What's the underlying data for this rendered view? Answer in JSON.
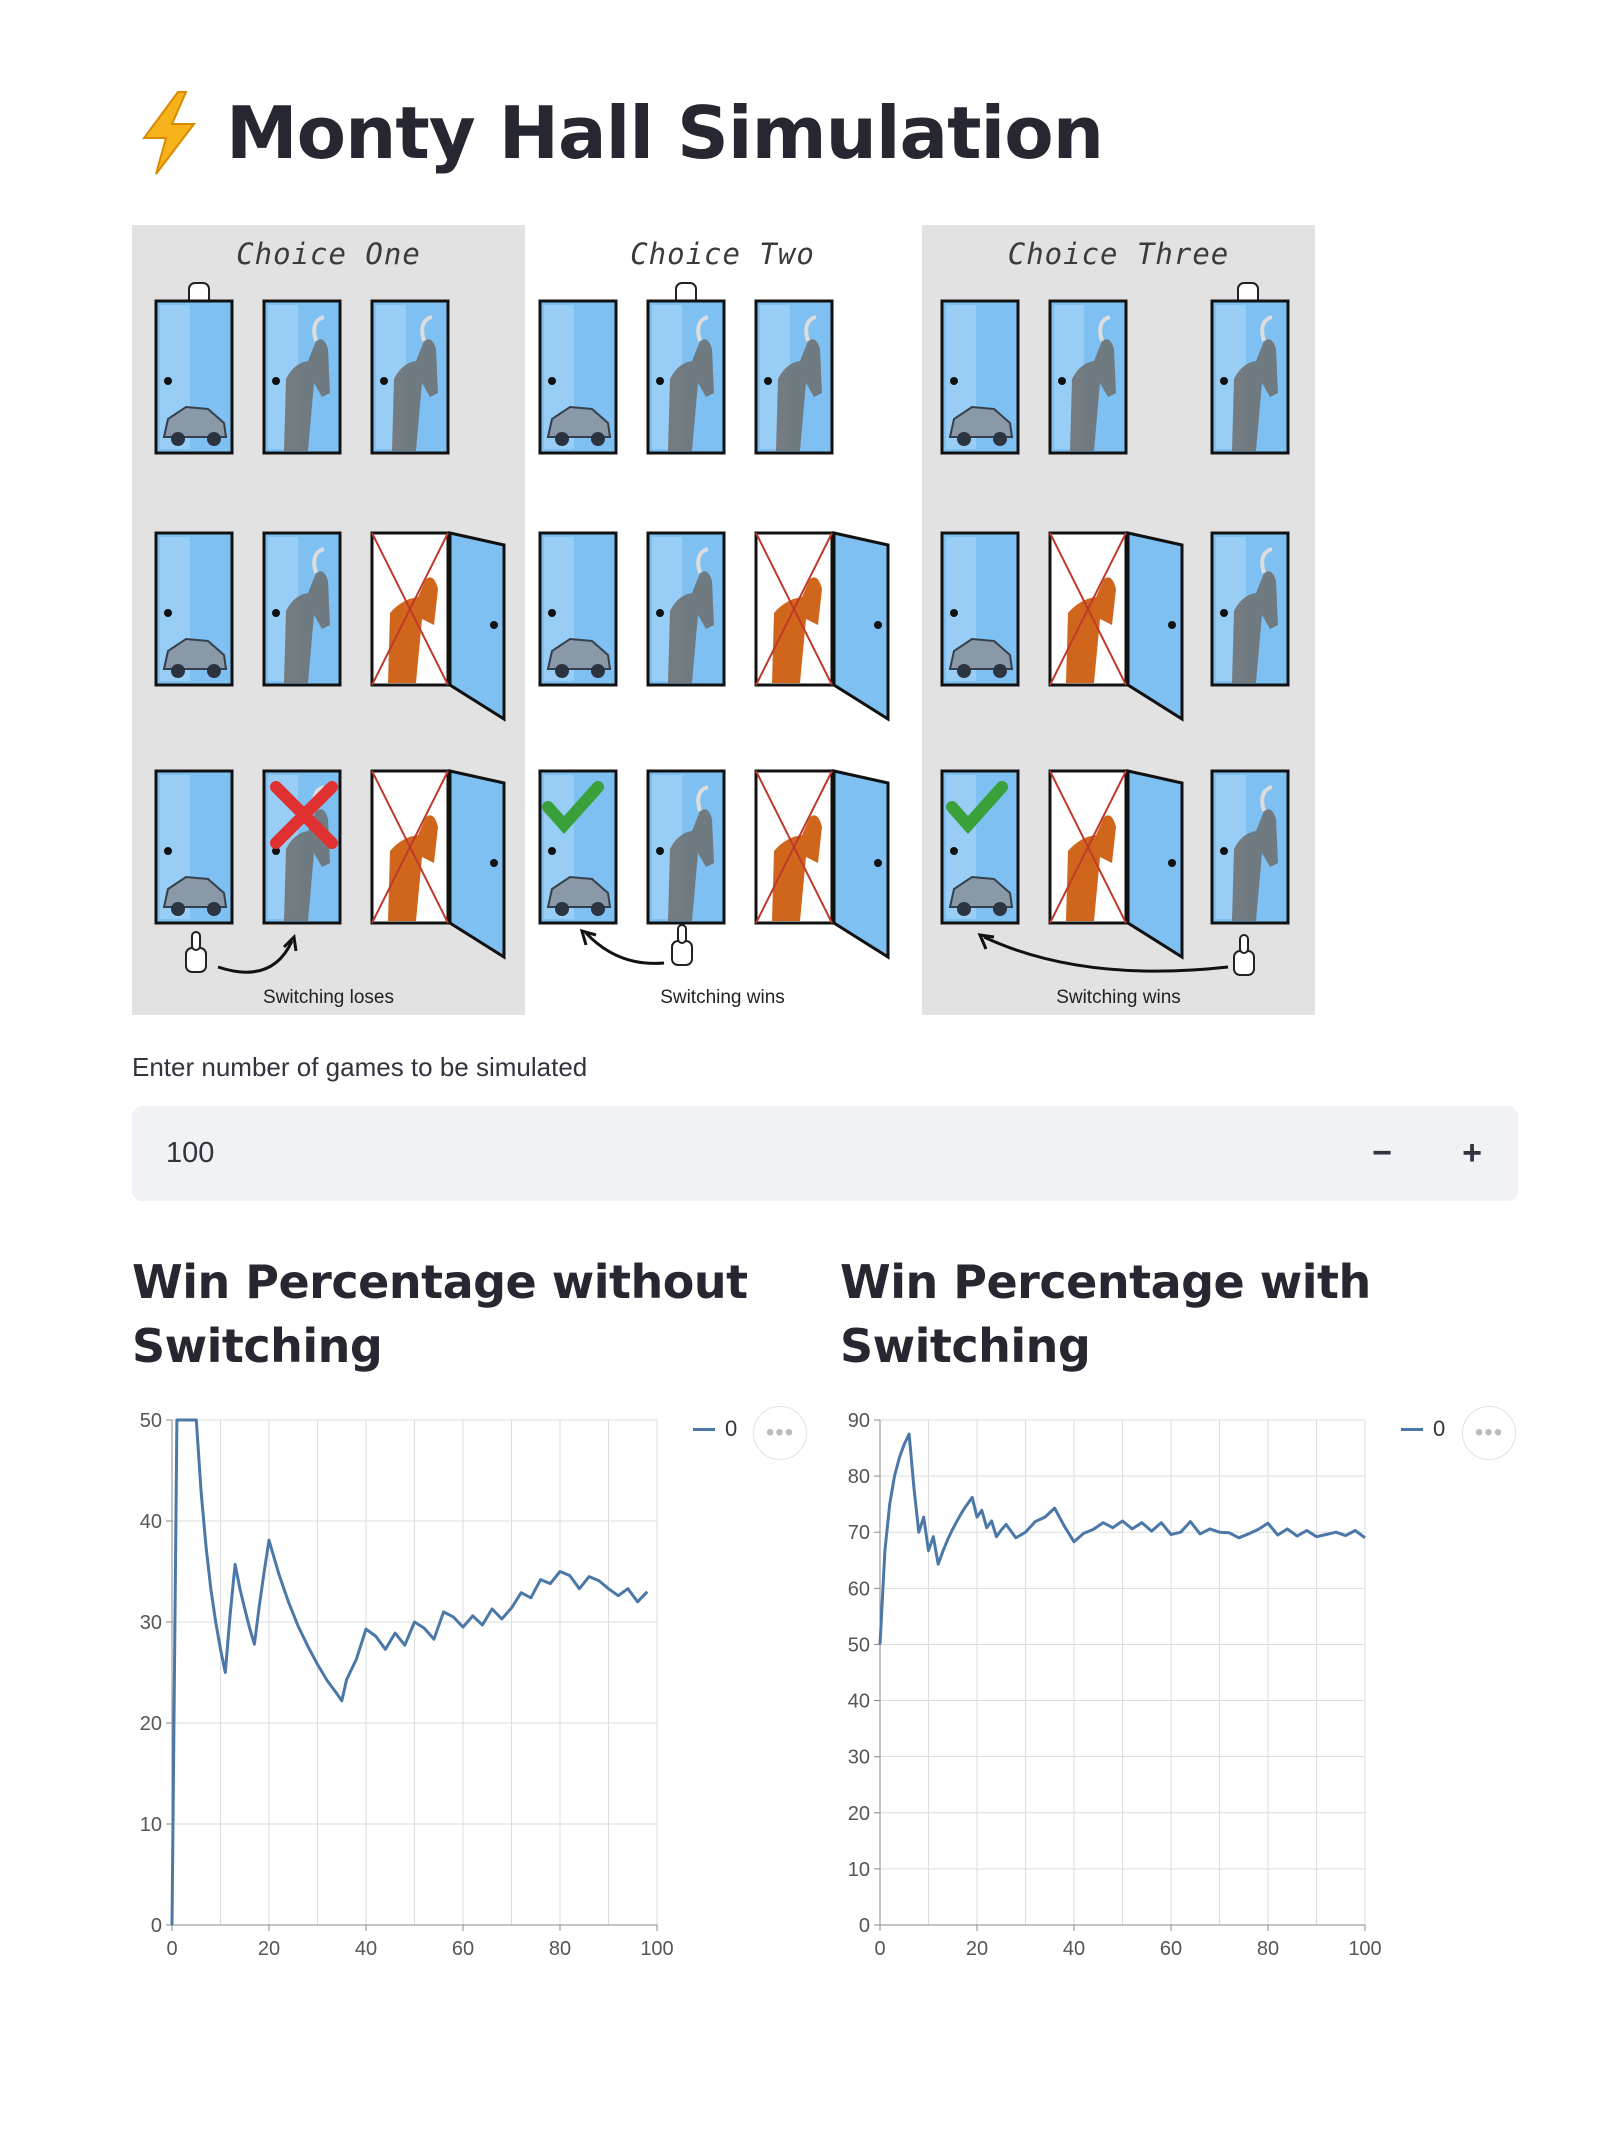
{
  "header": {
    "title": "Monty Hall Simulation",
    "icon": "lightning-bolt-icon"
  },
  "illustration": {
    "panels": [
      {
        "title": "Choice One",
        "caption": "Switching loses"
      },
      {
        "title": "Choice Two",
        "caption": "Switching wins"
      },
      {
        "title": "Choice Three",
        "caption": "Switching wins"
      }
    ]
  },
  "games_input": {
    "label": "Enter number of games to be simulated",
    "value": "100",
    "minus_label": "−",
    "plus_label": "+"
  },
  "charts": {
    "no_switch_title": "Win Percentage without Switching",
    "switch_title": "Win Percentage with Switching",
    "legend_label": "0",
    "menu_label": "•••"
  },
  "colors": {
    "line": "#4c78a8",
    "grid": "#dddddd",
    "accent": "#ff4b4b"
  },
  "chart_data": [
    {
      "type": "line",
      "title": "Win Percentage without Switching",
      "xlabel": "",
      "ylabel": "",
      "xlim": [
        0,
        100
      ],
      "ylim": [
        0,
        50
      ],
      "xticks": [
        0,
        20,
        40,
        60,
        80,
        100
      ],
      "yticks": [
        0,
        10,
        20,
        30,
        40,
        50
      ],
      "grid": true,
      "legend": "top-right",
      "series": [
        {
          "name": "0",
          "x": [
            0,
            1,
            2,
            3,
            4,
            5,
            6,
            7,
            8,
            9,
            10,
            11,
            12,
            13,
            14,
            15,
            16,
            17,
            18,
            19,
            20,
            22,
            24,
            26,
            28,
            30,
            32,
            34,
            35,
            36,
            38,
            40,
            42,
            44,
            46,
            48,
            50,
            52,
            54,
            56,
            58,
            60,
            62,
            64,
            66,
            68,
            70,
            72,
            74,
            76,
            78,
            80,
            82,
            84,
            86,
            88,
            90,
            92,
            94,
            96,
            98
          ],
          "y": [
            0,
            50,
            66.7,
            50,
            60,
            50,
            42.9,
            37.5,
            33.3,
            30,
            27.3,
            25,
            30.8,
            35.7,
            33.3,
            31.3,
            29.4,
            27.8,
            31.6,
            35,
            38.1,
            34.8,
            32,
            29.6,
            27.6,
            25.8,
            24.2,
            22.9,
            22.2,
            24.3,
            26.3,
            29.3,
            28.6,
            27.3,
            28.9,
            27.7,
            30,
            29.4,
            28.3,
            31.0,
            30.5,
            29.5,
            30.6,
            29.7,
            31.3,
            30.3,
            31.4,
            32.9,
            32.4,
            34.2,
            33.8,
            35,
            34.6,
            33.3,
            34.5,
            34.1,
            33.3,
            32.6,
            33.3,
            32.0,
            33.0
          ]
        }
      ]
    },
    {
      "type": "line",
      "title": "Win Percentage with Switching",
      "xlabel": "",
      "ylabel": "",
      "xlim": [
        0,
        100
      ],
      "ylim": [
        0,
        90
      ],
      "xticks": [
        0,
        20,
        40,
        60,
        80,
        100
      ],
      "yticks": [
        0,
        10,
        20,
        30,
        40,
        50,
        60,
        70,
        80,
        90
      ],
      "grid": true,
      "legend": "top-right",
      "series": [
        {
          "name": "0",
          "x": [
            0,
            1,
            2,
            3,
            4,
            5,
            6,
            7,
            8,
            9,
            10,
            11,
            12,
            13,
            14,
            15,
            16,
            17,
            18,
            19,
            20,
            21,
            22,
            23,
            24,
            25,
            26,
            28,
            30,
            32,
            34,
            36,
            38,
            40,
            42,
            44,
            46,
            48,
            50,
            52,
            54,
            56,
            58,
            60,
            62,
            64,
            66,
            68,
            70,
            72,
            74,
            76,
            78,
            80,
            82,
            84,
            86,
            88,
            90,
            92,
            94,
            96,
            98,
            100
          ],
          "y": [
            50,
            66.7,
            75,
            80,
            83.3,
            85.7,
            87.5,
            77.8,
            70,
            72.7,
            66.7,
            69.2,
            64.3,
            66.7,
            68.8,
            70.6,
            72.2,
            73.7,
            75,
            76.2,
            72.7,
            73.9,
            70.8,
            72,
            69.2,
            70.4,
            71.4,
            69,
            70.0,
            71.9,
            72.7,
            74.3,
            71.1,
            68.3,
            69.8,
            70.5,
            71.7,
            70.8,
            72,
            70.6,
            71.7,
            70.2,
            71.7,
            69.6,
            70.0,
            71.9,
            69.7,
            70.6,
            70.0,
            69.9,
            69.0,
            69.7,
            70.5,
            71.6,
            69.5,
            70.6,
            69.3,
            70.3,
            69.2,
            69.6,
            70.0,
            69.4,
            70.3,
            69.0
          ]
        }
      ]
    }
  ]
}
